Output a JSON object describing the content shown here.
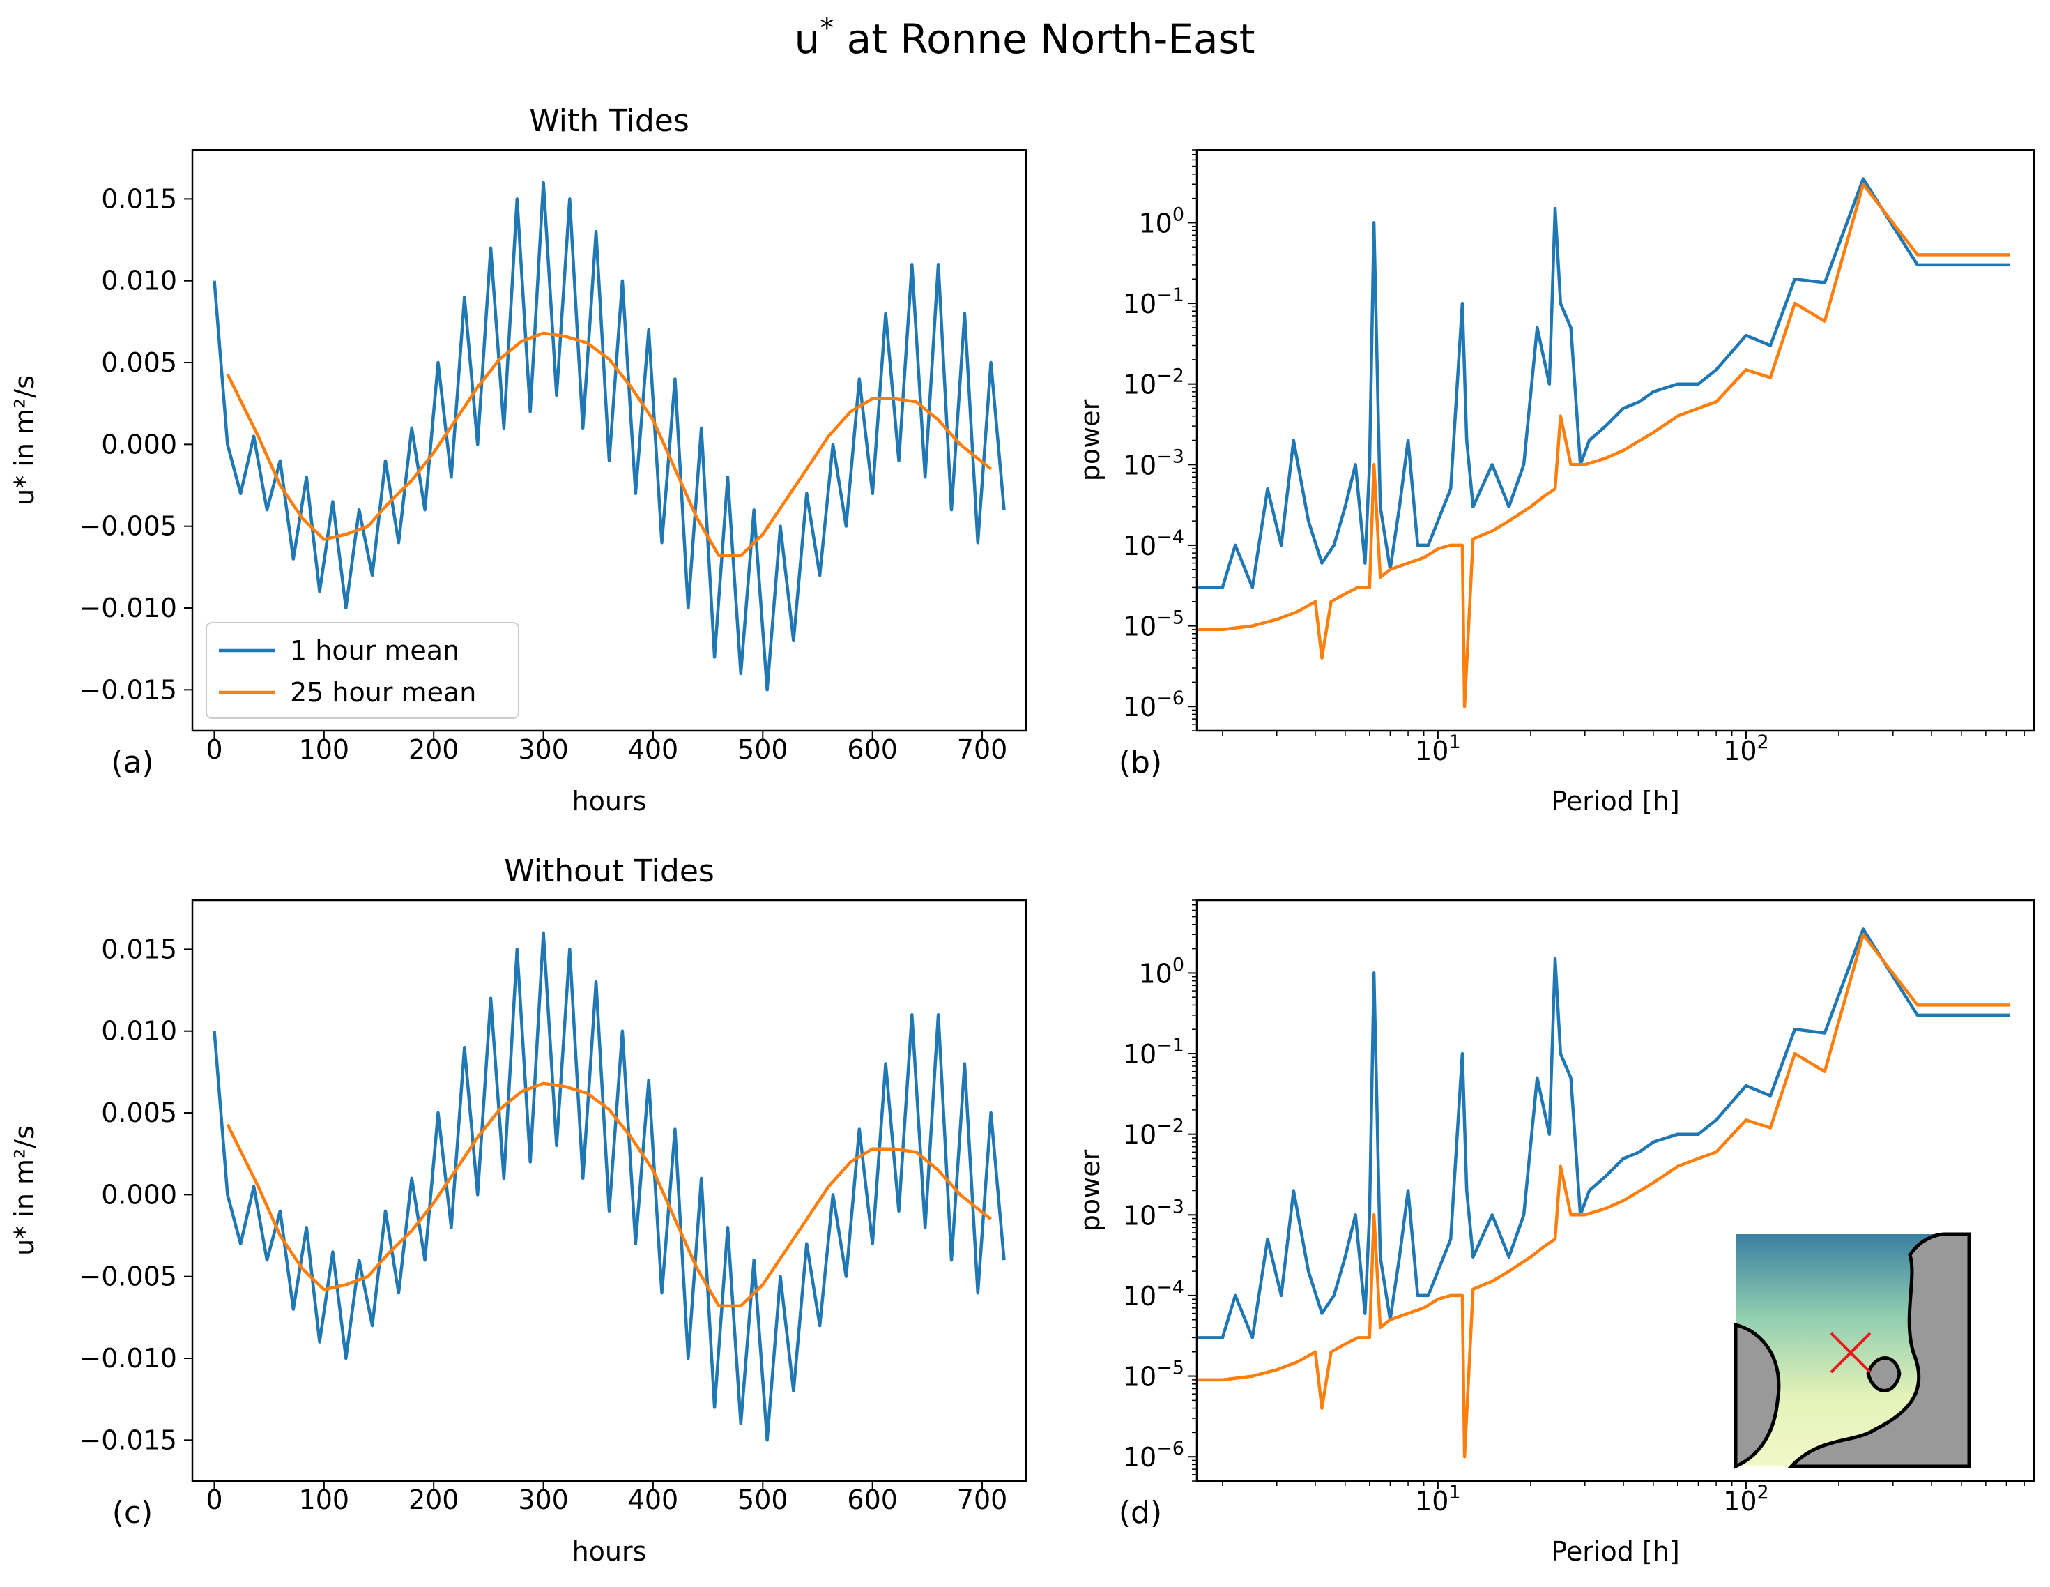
{
  "figure": {
    "title": "u* at Ronne North-East",
    "title_main": "u",
    "title_sup": "*",
    "title_rest": " at Ronne North-East"
  },
  "colors": {
    "one_hour": "#1f77b4",
    "twentyfive_hour": "#ff7f0e",
    "inset_land": "#999999",
    "inset_marker": "#e41a1c"
  },
  "legend": {
    "one_hour": "1 hour mean",
    "twentyfive_hour": "25 hour mean"
  },
  "chart_data": [
    {
      "id": "a",
      "panel_label": "(a)",
      "type": "line",
      "title": "With Tides",
      "xlabel": "hours",
      "ylabel": "u* in m²/s",
      "xlim": [
        -20,
        740
      ],
      "ylim": [
        -0.0175,
        0.018
      ],
      "xticks": [
        0,
        100,
        200,
        300,
        400,
        500,
        600,
        700
      ],
      "yticks": [
        -0.015,
        -0.01,
        -0.005,
        0.0,
        0.005,
        0.01,
        0.015
      ],
      "ytick_labels": [
        "−0.015",
        "−0.010",
        "−0.005",
        "0.000",
        "0.005",
        "0.010",
        "0.015"
      ],
      "legend_position": "lower-left",
      "series": [
        {
          "name": "1 hour mean",
          "x": [
            0,
            12,
            24,
            36,
            48,
            60,
            72,
            84,
            96,
            108,
            120,
            132,
            144,
            156,
            168,
            180,
            192,
            204,
            216,
            228,
            240,
            252,
            264,
            276,
            288,
            300,
            312,
            324,
            336,
            348,
            360,
            372,
            384,
            396,
            408,
            420,
            432,
            444,
            456,
            468,
            480,
            492,
            504,
            516,
            528,
            540,
            552,
            564,
            576,
            588,
            600,
            612,
            624,
            636,
            648,
            660,
            672,
            684,
            696,
            708,
            720
          ],
          "y": [
            0.01,
            0.0,
            -0.003,
            0.0005,
            -0.004,
            -0.001,
            -0.007,
            -0.002,
            -0.009,
            -0.0035,
            -0.01,
            -0.004,
            -0.008,
            -0.001,
            -0.006,
            0.001,
            -0.004,
            0.005,
            -0.002,
            0.009,
            0.0,
            0.012,
            0.001,
            0.015,
            0.002,
            0.016,
            0.003,
            0.015,
            0.001,
            0.013,
            -0.001,
            0.01,
            -0.003,
            0.007,
            -0.006,
            0.004,
            -0.01,
            0.001,
            -0.013,
            -0.002,
            -0.014,
            -0.004,
            -0.015,
            -0.005,
            -0.012,
            -0.003,
            -0.008,
            0.0,
            -0.005,
            0.004,
            -0.003,
            0.008,
            -0.001,
            0.011,
            -0.002,
            0.011,
            -0.004,
            0.008,
            -0.006,
            0.005,
            -0.004
          ]
        },
        {
          "name": "25 hour mean",
          "x": [
            12,
            40,
            60,
            80,
            100,
            120,
            140,
            160,
            180,
            200,
            220,
            240,
            260,
            280,
            300,
            320,
            340,
            360,
            380,
            400,
            420,
            440,
            460,
            480,
            500,
            520,
            540,
            560,
            580,
            600,
            620,
            640,
            660,
            680,
            708
          ],
          "y": [
            0.0043,
            0.0005,
            -0.0025,
            -0.0045,
            -0.0058,
            -0.0055,
            -0.005,
            -0.0035,
            -0.0022,
            -0.0005,
            0.0015,
            0.0035,
            0.0052,
            0.0063,
            0.0068,
            0.0066,
            0.0062,
            0.0052,
            0.0035,
            0.0015,
            -0.0015,
            -0.0045,
            -0.0068,
            -0.0068,
            -0.0055,
            -0.0035,
            -0.0015,
            0.0005,
            0.002,
            0.0028,
            0.0028,
            0.0026,
            0.0015,
            0.0,
            -0.0015
          ]
        }
      ]
    },
    {
      "id": "b",
      "panel_label": "(b)",
      "type": "line",
      "xlabel": "Period [h]",
      "ylabel": "power",
      "xscale": "log",
      "yscale": "log",
      "xlim": [
        1.65,
        860
      ],
      "ylim": [
        5e-07,
        8
      ],
      "xtick_exponents": [
        1,
        2
      ],
      "ytick_exponents": [
        0,
        -1,
        -2,
        -3,
        -4,
        -5,
        -6
      ],
      "series": [
        {
          "name": "1 hour mean",
          "x": [
            1.65,
            2.0,
            2.2,
            2.5,
            2.8,
            3.1,
            3.4,
            3.8,
            4.2,
            4.6,
            5.0,
            5.4,
            5.8,
            6.0,
            6.2,
            6.5,
            7.0,
            7.5,
            8.0,
            8.6,
            9.3,
            10.0,
            11.0,
            12.0,
            12.4,
            13.0,
            15.0,
            17.0,
            19.0,
            21.0,
            23.0,
            24.0,
            25.0,
            27.0,
            29.0,
            31.0,
            35.0,
            40.0,
            45.0,
            50.0,
            60.0,
            70.0,
            80.0,
            100.0,
            120.0,
            144.0,
            180.0,
            240.0,
            360.0,
            720.0
          ],
          "y": [
            3e-05,
            3e-05,
            0.0001,
            3e-05,
            0.0005,
            0.0001,
            0.002,
            0.0002,
            6e-05,
            0.0001,
            0.0003,
            0.001,
            6e-05,
            0.001,
            1.0,
            0.0003,
            5e-05,
            0.0003,
            0.002,
            0.0001,
            0.0001,
            0.0002,
            0.0005,
            0.1,
            0.002,
            0.0003,
            0.001,
            0.0003,
            0.001,
            0.05,
            0.01,
            1.5,
            0.1,
            0.05,
            0.001,
            0.002,
            0.003,
            0.005,
            0.006,
            0.008,
            0.01,
            0.01,
            0.015,
            0.04,
            0.03,
            0.2,
            0.18,
            3.5,
            0.3,
            0.3
          ]
        },
        {
          "name": "25 hour mean",
          "x": [
            1.65,
            2.0,
            2.5,
            3.0,
            3.5,
            4.0,
            4.2,
            4.5,
            5.0,
            5.5,
            6.0,
            6.2,
            6.5,
            7.0,
            8.0,
            9.0,
            10.0,
            11.0,
            12.0,
            12.2,
            13.0,
            15.0,
            17.0,
            20.0,
            22.0,
            24.0,
            25.0,
            27.0,
            30.0,
            35.0,
            40.0,
            50.0,
            60.0,
            70.0,
            80.0,
            100.0,
            120.0,
            144.0,
            180.0,
            240.0,
            360.0,
            720.0
          ],
          "y": [
            9e-06,
            9e-06,
            1e-05,
            1.2e-05,
            1.5e-05,
            2e-05,
            4e-06,
            2e-05,
            2.5e-05,
            3e-05,
            3e-05,
            0.001,
            4e-05,
            5e-05,
            6e-05,
            7e-05,
            9e-05,
            0.0001,
            0.0001,
            1e-06,
            0.00012,
            0.00015,
            0.0002,
            0.0003,
            0.0004,
            0.0005,
            0.004,
            0.001,
            0.001,
            0.0012,
            0.0015,
            0.0025,
            0.004,
            0.005,
            0.006,
            0.015,
            0.012,
            0.1,
            0.06,
            3.0,
            0.4,
            0.4
          ]
        }
      ]
    },
    {
      "id": "c",
      "panel_label": "(c)",
      "type": "line",
      "title": "Without Tides",
      "xlabel": "hours",
      "ylabel": "u* in m²/s",
      "xlim": [
        -20,
        740
      ],
      "ylim": [
        -0.0175,
        0.018
      ],
      "xticks": [
        0,
        100,
        200,
        300,
        400,
        500,
        600,
        700
      ],
      "yticks": [
        -0.015,
        -0.01,
        -0.005,
        0.0,
        0.005,
        0.01,
        0.015
      ],
      "ytick_labels": [
        "−0.015",
        "−0.010",
        "−0.005",
        "0.000",
        "0.005",
        "0.010",
        "0.015"
      ],
      "series": [
        {
          "name": "1 hour mean",
          "x": [
            0,
            12,
            24,
            36,
            48,
            60,
            72,
            84,
            96,
            108,
            120,
            132,
            144,
            156,
            168,
            180,
            192,
            204,
            216,
            228,
            240,
            252,
            264,
            276,
            288,
            300,
            312,
            324,
            336,
            348,
            360,
            372,
            384,
            396,
            408,
            420,
            432,
            444,
            456,
            468,
            480,
            492,
            504,
            516,
            528,
            540,
            552,
            564,
            576,
            588,
            600,
            612,
            624,
            636,
            648,
            660,
            672,
            684,
            696,
            708,
            720
          ],
          "y": [
            0.01,
            0.0,
            -0.003,
            0.0005,
            -0.004,
            -0.001,
            -0.007,
            -0.002,
            -0.009,
            -0.0035,
            -0.01,
            -0.004,
            -0.008,
            -0.001,
            -0.006,
            0.001,
            -0.004,
            0.005,
            -0.002,
            0.009,
            0.0,
            0.012,
            0.001,
            0.015,
            0.002,
            0.016,
            0.003,
            0.015,
            0.001,
            0.013,
            -0.001,
            0.01,
            -0.003,
            0.007,
            -0.006,
            0.004,
            -0.01,
            0.001,
            -0.013,
            -0.002,
            -0.014,
            -0.004,
            -0.015,
            -0.005,
            -0.012,
            -0.003,
            -0.008,
            0.0,
            -0.005,
            0.004,
            -0.003,
            0.008,
            -0.001,
            0.011,
            -0.002,
            0.011,
            -0.004,
            0.008,
            -0.006,
            0.005,
            -0.004
          ]
        },
        {
          "name": "25 hour mean",
          "x": [
            12,
            40,
            60,
            80,
            100,
            120,
            140,
            160,
            180,
            200,
            220,
            240,
            260,
            280,
            300,
            320,
            340,
            360,
            380,
            400,
            420,
            440,
            460,
            480,
            500,
            520,
            540,
            560,
            580,
            600,
            620,
            640,
            660,
            680,
            708
          ],
          "y": [
            0.0043,
            0.0005,
            -0.0025,
            -0.0045,
            -0.0058,
            -0.0055,
            -0.005,
            -0.0035,
            -0.0022,
            -0.0005,
            0.0015,
            0.0035,
            0.0052,
            0.0063,
            0.0068,
            0.0066,
            0.0062,
            0.0052,
            0.0035,
            0.0015,
            -0.0015,
            -0.0045,
            -0.0068,
            -0.0068,
            -0.0055,
            -0.0035,
            -0.0015,
            0.0005,
            0.002,
            0.0028,
            0.0028,
            0.0026,
            0.0015,
            0.0,
            -0.0015
          ]
        }
      ]
    },
    {
      "id": "d",
      "panel_label": "(d)",
      "type": "line",
      "xlabel": "Period [h]",
      "ylabel": "power",
      "xscale": "log",
      "yscale": "log",
      "xlim": [
        1.65,
        860
      ],
      "ylim": [
        5e-07,
        8
      ],
      "xtick_exponents": [
        1,
        2
      ],
      "ytick_exponents": [
        0,
        -1,
        -2,
        -3,
        -4,
        -5,
        -6
      ],
      "has_inset_map": true,
      "series": [
        {
          "name": "1 hour mean",
          "x": [
            1.65,
            2.0,
            2.2,
            2.5,
            2.8,
            3.1,
            3.4,
            3.8,
            4.2,
            4.6,
            5.0,
            5.4,
            5.8,
            6.0,
            6.2,
            6.5,
            7.0,
            7.5,
            8.0,
            8.6,
            9.3,
            10.0,
            11.0,
            12.0,
            12.4,
            13.0,
            15.0,
            17.0,
            19.0,
            21.0,
            23.0,
            24.0,
            25.0,
            27.0,
            29.0,
            31.0,
            35.0,
            40.0,
            45.0,
            50.0,
            60.0,
            70.0,
            80.0,
            100.0,
            120.0,
            144.0,
            180.0,
            240.0,
            360.0,
            720.0
          ],
          "y": [
            3e-05,
            3e-05,
            0.0001,
            3e-05,
            0.0005,
            0.0001,
            0.002,
            0.0002,
            6e-05,
            0.0001,
            0.0003,
            0.001,
            6e-05,
            0.001,
            1.0,
            0.0003,
            5e-05,
            0.0003,
            0.002,
            0.0001,
            0.0001,
            0.0002,
            0.0005,
            0.1,
            0.002,
            0.0003,
            0.001,
            0.0003,
            0.001,
            0.05,
            0.01,
            1.5,
            0.1,
            0.05,
            0.001,
            0.002,
            0.003,
            0.005,
            0.006,
            0.008,
            0.01,
            0.01,
            0.015,
            0.04,
            0.03,
            0.2,
            0.18,
            3.5,
            0.3,
            0.3
          ]
        },
        {
          "name": "25 hour mean",
          "x": [
            1.65,
            2.0,
            2.5,
            3.0,
            3.5,
            4.0,
            4.2,
            4.5,
            5.0,
            5.5,
            6.0,
            6.2,
            6.5,
            7.0,
            8.0,
            9.0,
            10.0,
            11.0,
            12.0,
            12.2,
            13.0,
            15.0,
            17.0,
            20.0,
            22.0,
            24.0,
            25.0,
            27.0,
            30.0,
            35.0,
            40.0,
            50.0,
            60.0,
            70.0,
            80.0,
            100.0,
            120.0,
            144.0,
            180.0,
            240.0,
            360.0,
            720.0
          ],
          "y": [
            9e-06,
            9e-06,
            1e-05,
            1.2e-05,
            1.5e-05,
            2e-05,
            4e-06,
            2e-05,
            2.5e-05,
            3e-05,
            3e-05,
            0.001,
            4e-05,
            5e-05,
            6e-05,
            7e-05,
            9e-05,
            0.0001,
            0.0001,
            1e-06,
            0.00012,
            0.00015,
            0.0002,
            0.0003,
            0.0004,
            0.0005,
            0.004,
            0.001,
            0.001,
            0.0012,
            0.0015,
            0.0025,
            0.004,
            0.005,
            0.006,
            0.015,
            0.012,
            0.1,
            0.06,
            3.0,
            0.4,
            0.4
          ]
        }
      ]
    }
  ]
}
